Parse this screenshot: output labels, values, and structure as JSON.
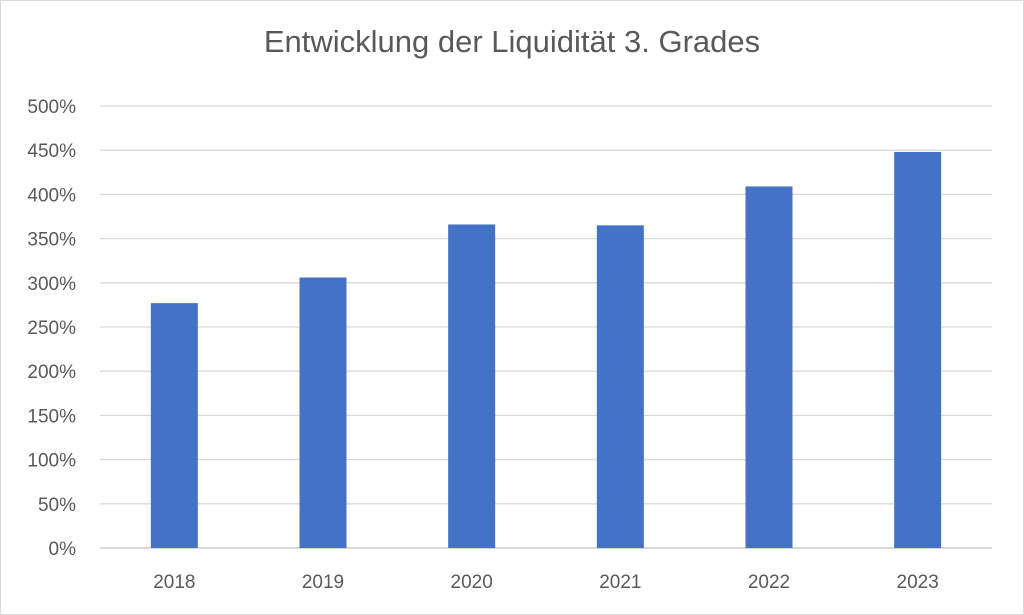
{
  "chart_data": {
    "type": "bar",
    "title": "Entwicklung der Liquidität 3. Grades",
    "categories": [
      "2018",
      "2019",
      "2020",
      "2021",
      "2022",
      "2023"
    ],
    "values": [
      277,
      306,
      366,
      365,
      409,
      448
    ],
    "unit": "%",
    "ylim": [
      0,
      500
    ],
    "yticks": [
      "0%",
      "50%",
      "100%",
      "150%",
      "200%",
      "250%",
      "300%",
      "350%",
      "400%",
      "450%",
      "500%"
    ],
    "grid": true,
    "legend": "none",
    "bar_color": "#4472c4"
  }
}
